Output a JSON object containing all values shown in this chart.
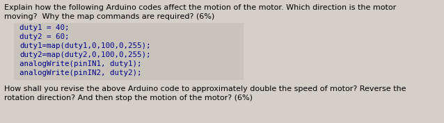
{
  "bg_color": "#d4d0c8",
  "code_bg_color": "#c8c4bc",
  "text_color": "#000000",
  "code_color": "#00008b",
  "line1": "Explain how the following Arduino codes affect the motion of the motor. Which direction is the motor",
  "line2": "moving?  Why the map commands are required? (6%)",
  "code_lines": [
    "duty1 = 40;",
    "duty2 = 60;",
    "duty1=map(duty1,0,100,0,255);",
    "duty2=map(duty2,0,100,0,255);",
    "analogWrite(pinIN1, duty1);",
    "analogWrite(pinIN2, duty2);"
  ],
  "line3": "How shall you revise the above Arduino code to approximately double the speed of motor? Reverse the",
  "line4": "rotation direction? And then stop the motion of the motor? (6%)",
  "body_fontsize": 8.0,
  "code_fontsize": 7.8,
  "figwidth": 6.38,
  "figheight": 1.77,
  "dpi": 100
}
